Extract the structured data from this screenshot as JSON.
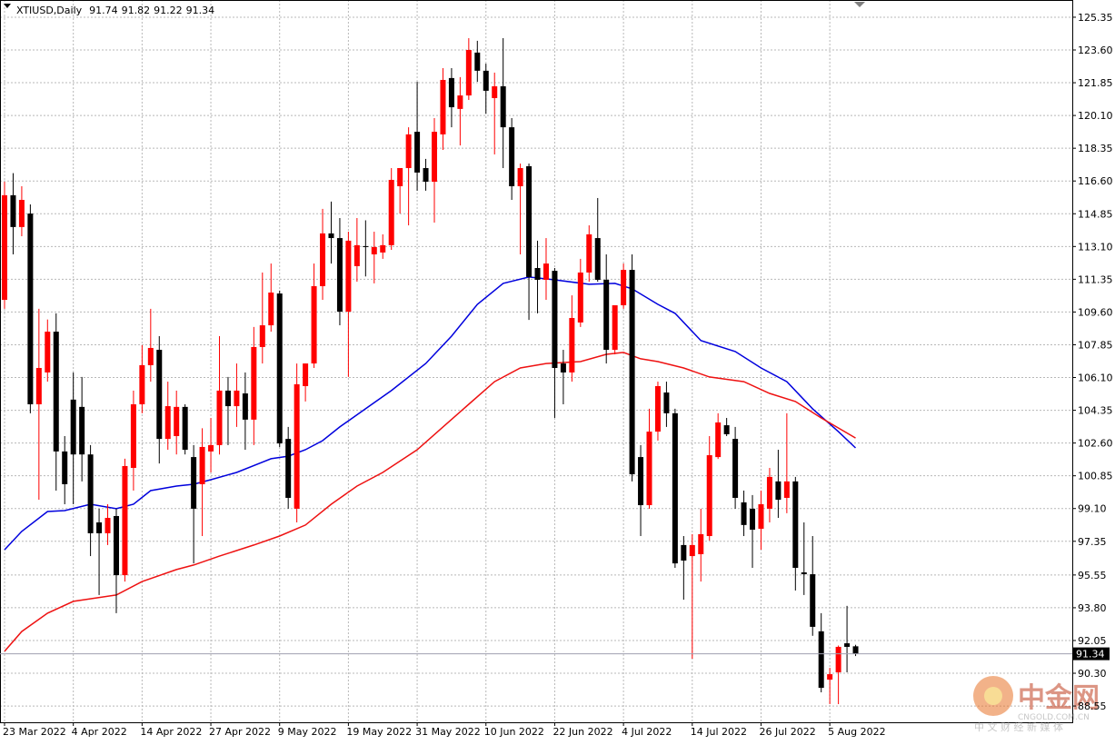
{
  "chart_data": {
    "type": "candlestick",
    "title": "XTIUSD,Daily",
    "categories": [
      "23 Mar 2022",
      null,
      null,
      null,
      null,
      null,
      null,
      null,
      "4 Apr 2022",
      null,
      null,
      null,
      null,
      null,
      null,
      null,
      "14 Apr 2022",
      null,
      null,
      null,
      null,
      null,
      null,
      null,
      "27 Apr 2022",
      null,
      null,
      null,
      null,
      null,
      null,
      null,
      "9 May 2022",
      null,
      null,
      null,
      null,
      null,
      null,
      null,
      "19 May 2022",
      null,
      null,
      null,
      null,
      null,
      null,
      null,
      "31 May 2022",
      null,
      null,
      null,
      null,
      null,
      null,
      null,
      "10 Jun 2022",
      null,
      null,
      null,
      null,
      null,
      null,
      null,
      "22 Jun 2022",
      null,
      null,
      null,
      null,
      null,
      null,
      null,
      "4 Jul 2022",
      null,
      null,
      null,
      null,
      null,
      null,
      null,
      "14 Jul 2022",
      null,
      null,
      null,
      null,
      null,
      null,
      null,
      "26 Jul 2022",
      null,
      null,
      null,
      null,
      null,
      null,
      null,
      "5 Aug 2022",
      null,
      null,
      null
    ],
    "open": [
      110.25,
      115.84,
      114.14,
      114.86,
      104.67,
      106.37,
      108.55,
      102.15,
      104.92,
      104.53,
      101.99,
      98.36,
      97.78,
      98.7,
      95.54,
      101.27,
      104.67,
      106.76,
      107.58,
      102.82,
      102.97,
      104.53,
      101.85,
      100.4,
      102.15,
      102.49,
      105.4,
      104.57,
      105.25,
      103.85,
      107.73,
      108.89,
      110.59,
      102.82,
      99.09,
      105.64,
      106.85,
      110.98,
      113.8,
      113.55,
      109.62,
      112.05,
      113.12,
      112.68,
      112.78,
      113.17,
      116.32,
      117.29,
      119.23,
      117.29,
      116.56,
      119.09,
      122.1,
      120.45,
      121.17,
      123.46,
      122.49,
      121.03,
      121.66,
      119.47,
      116.32,
      117.39,
      111.95,
      111.32,
      111.8,
      106.85,
      106.37,
      109.04,
      111.71,
      113.55,
      111.32,
      107.58,
      109.96,
      111.85,
      101.85,
      99.28,
      103.21,
      105.3,
      104.19,
      97.15,
      96.56,
      96.66,
      97.63,
      101.85,
      103.55,
      102.82,
      99.43,
      99.09,
      98.02,
      99.09,
      100.55,
      99.67,
      100.55,
      95.69,
      95.59,
      92.54,
      89.96,
      90.35,
      91.9,
      91.74
    ],
    "high": [
      116.56,
      117.02,
      116.32,
      115.35,
      109.77,
      109.2,
      109.53,
      102.97,
      106.37,
      106.13,
      102.49,
      99.09,
      99.33,
      99.09,
      101.76,
      105.4,
      107.83,
      109.77,
      108.31,
      105.88,
      105.4,
      104.67,
      102.49,
      103.39,
      103.94,
      108.31,
      106.13,
      106.85,
      106.37,
      108.8,
      111.71,
      112.19,
      110.74,
      103.46,
      106.85,
      106.85,
      112.19,
      115.11,
      115.5,
      114.62,
      113.89,
      114.62,
      114.5,
      113.89,
      113.75,
      117.29,
      117.02,
      119.47,
      121.9,
      117.78,
      119.96,
      122.63,
      122.63,
      122.15,
      124.23,
      124.09,
      122.87,
      122.39,
      124.23,
      119.96,
      117.53,
      117.53,
      113.41,
      113.55,
      111.95,
      107.58,
      110.49,
      112.44,
      114.23,
      115.69,
      112.68,
      109.96,
      112.19,
      112.68,
      102.49,
      104.43,
      105.88,
      105.88,
      104.43,
      97.63,
      97.73,
      99.09,
      102.97,
      104.19,
      103.94,
      103.46,
      100.06,
      99.82,
      100.06,
      101.27,
      102.24,
      104.19,
      100.79,
      98.36,
      97.63,
      93.51,
      90.59,
      91.78,
      93.9,
      91.82
    ],
    "low": [
      109.77,
      112.68,
      113.65,
      104.19,
      99.57,
      105.88,
      100.06,
      99.33,
      99.33,
      100.55,
      96.56,
      94.48,
      97.15,
      93.51,
      95.2,
      100.06,
      104.19,
      105.88,
      101.51,
      102.24,
      101.99,
      101.99,
      96.17,
      97.63,
      101.03,
      101.99,
      102.49,
      103.46,
      102.24,
      102.49,
      106.85,
      108.55,
      102.39,
      99.09,
      98.36,
      104.82,
      106.61,
      110.25,
      112.19,
      108.89,
      106.13,
      111.22,
      111.5,
      111.13,
      112.44,
      112.92,
      114.86,
      114.23,
      116.08,
      116.08,
      114.38,
      118.26,
      119.47,
      118.5,
      120.93,
      121.9,
      120.2,
      118.02,
      117.29,
      115.59,
      112.68,
      109.18,
      109.53,
      110.25,
      103.94,
      104.67,
      105.88,
      108.8,
      111.22,
      111.22,
      106.85,
      107.34,
      109.77,
      100.55,
      97.63,
      99.09,
      102.73,
      103.46,
      95.93,
      94.23,
      91.08,
      95.2,
      97.39,
      101.75,
      102.97,
      99.09,
      97.63,
      95.93,
      96.9,
      98.36,
      98.6,
      98.85,
      94.72,
      94.48,
      92.3,
      89.28,
      88.65,
      88.65,
      90.35,
      91.22
    ],
    "close": [
      115.84,
      114.14,
      115.59,
      104.67,
      106.61,
      108.55,
      102.15,
      100.4,
      101.99,
      101.99,
      97.78,
      97.78,
      98.6,
      95.54,
      101.37,
      104.67,
      106.76,
      107.68,
      102.82,
      104.57,
      104.53,
      102.24,
      99.09,
      102.39,
      102.49,
      105.4,
      104.57,
      105.4,
      103.85,
      107.73,
      108.89,
      110.64,
      102.58,
      99.67,
      105.74,
      106.85,
      110.98,
      113.8,
      113.55,
      109.62,
      113.41,
      113.17,
      113.07,
      113.07,
      113.17,
      116.66,
      117.29,
      119.09,
      117.05,
      116.56,
      119.23,
      122.0,
      120.54,
      121.17,
      123.6,
      122.49,
      121.42,
      121.66,
      119.47,
      116.32,
      117.29,
      111.47,
      111.32,
      112.19,
      106.61,
      106.37,
      109.28,
      111.71,
      113.75,
      111.32,
      107.58,
      109.96,
      111.85,
      100.93,
      99.28,
      103.21,
      105.64,
      104.19,
      96.17,
      96.32,
      97.15,
      97.73,
      101.95,
      103.7,
      103.07,
      99.67,
      98.22,
      97.97,
      99.33,
      100.79,
      99.57,
      100.55,
      95.93,
      95.59,
      92.78,
      89.52,
      90.25,
      91.71,
      91.71,
      91.34
    ],
    "up_color": "#ff0000",
    "down_color": "#000000",
    "lines": [
      {
        "color": "#0000dd",
        "x": [
          0,
          2,
          5,
          7,
          10,
          13,
          15,
          17,
          20,
          22,
          24,
          27,
          31,
          33,
          35,
          37,
          39,
          42,
          45,
          49,
          52,
          55,
          58,
          61,
          64,
          68,
          71,
          73,
          76,
          78,
          81,
          85,
          88,
          91,
          94,
          97,
          99
        ],
        "values": [
          96.9,
          97.88,
          98.94,
          98.99,
          99.33,
          99.09,
          99.33,
          100.06,
          100.3,
          100.4,
          100.64,
          101.03,
          101.76,
          101.9,
          102.24,
          102.73,
          103.46,
          104.43,
          105.4,
          106.85,
          108.31,
          110.01,
          111.13,
          111.47,
          111.32,
          111.08,
          111.13,
          110.84,
          110.01,
          109.53,
          108.07,
          107.49,
          106.61,
          105.88,
          104.43,
          103.21,
          102.34
        ]
      },
      {
        "color": "#ee1111",
        "x": [
          0,
          2,
          5,
          8,
          13,
          16,
          20,
          22,
          25,
          29,
          32,
          35,
          38,
          41,
          44,
          48,
          51,
          54,
          57,
          60,
          63,
          67,
          70,
          72,
          74,
          76,
          79,
          82,
          86,
          89,
          92,
          95,
          99
        ],
        "values": [
          91.47,
          92.53,
          93.51,
          94.14,
          94.48,
          95.2,
          95.84,
          96.08,
          96.56,
          97.15,
          97.63,
          98.22,
          99.33,
          100.3,
          101.03,
          102.24,
          103.46,
          104.67,
          105.88,
          106.61,
          106.85,
          106.95,
          107.34,
          107.44,
          107.1,
          106.95,
          106.61,
          106.13,
          105.88,
          105.25,
          104.82,
          103.94,
          102.87
        ]
      }
    ],
    "ylim": [
      87.68,
      126.27
    ],
    "yticks": [
      {
        "value": 88.55,
        "label": "88.55"
      },
      {
        "value": 90.3,
        "label": "90.30"
      },
      92.05,
      {
        "value": 93.8,
        "label": "93.80"
      },
      95.55,
      {
        "value": 97.35,
        "label": "97.35"
      },
      {
        "value": 99.1,
        "label": "99.10"
      },
      {
        "value": 100.85,
        "label": "100.85"
      },
      {
        "value": 102.6,
        "label": "102.60"
      },
      {
        "value": 104.35,
        "label": "104.35"
      },
      {
        "value": 106.1,
        "label": "106.10"
      },
      {
        "value": 107.85,
        "label": "107.85"
      },
      {
        "value": 109.6,
        "label": "109.60"
      },
      {
        "value": 111.35,
        "label": "111.35"
      },
      {
        "value": 113.1,
        "label": "113.10"
      },
      {
        "value": 114.85,
        "label": "114.85"
      },
      {
        "value": 116.6,
        "label": "116.60"
      },
      {
        "value": 118.35,
        "label": "118.35"
      },
      {
        "value": 120.1,
        "label": "120.10"
      },
      {
        "value": 121.85,
        "label": "121.85"
      },
      {
        "value": 123.6,
        "label": "123.60"
      },
      125.35
    ],
    "grid": true
  },
  "watermark": {
    "logo": "中金网",
    "domain": "CNGOLD.COM.CN",
    "tagline": "中 文 财 经 新 媒 体"
  }
}
